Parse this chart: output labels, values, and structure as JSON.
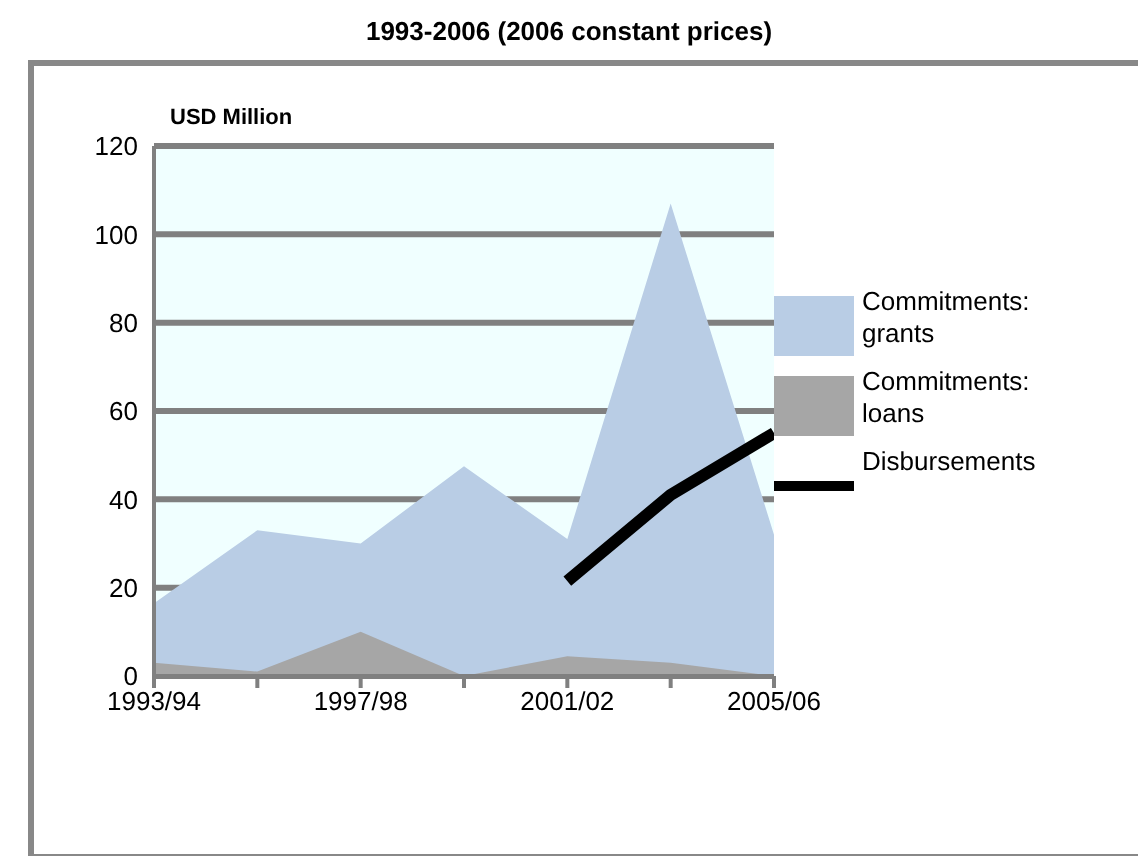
{
  "chart_data": {
    "type": "area",
    "title": "1993-2006 (2006 constant prices)",
    "ylabel": "USD Million",
    "categories": [
      "1993/94",
      null,
      "1997/98",
      null,
      "2001/02",
      null,
      "2005/06"
    ],
    "series": [
      {
        "name": "Commitments: grants",
        "color": "#b9cde5",
        "values": [
          16.5,
          33,
          30,
          47.5,
          31,
          107,
          32
        ]
      },
      {
        "name": "Commitments: loans",
        "color": "#a6a6a6",
        "values": [
          3,
          1,
          10,
          0,
          4.5,
          3,
          0
        ]
      },
      {
        "name": "Disbursements",
        "type": "line",
        "color": "#000000",
        "values": [
          null,
          null,
          null,
          null,
          21.5,
          41,
          55
        ]
      }
    ],
    "ylim": [
      0,
      120
    ],
    "yticks": [
      0,
      20,
      40,
      60,
      80,
      100,
      120
    ],
    "grid": "y",
    "legend": "right"
  }
}
